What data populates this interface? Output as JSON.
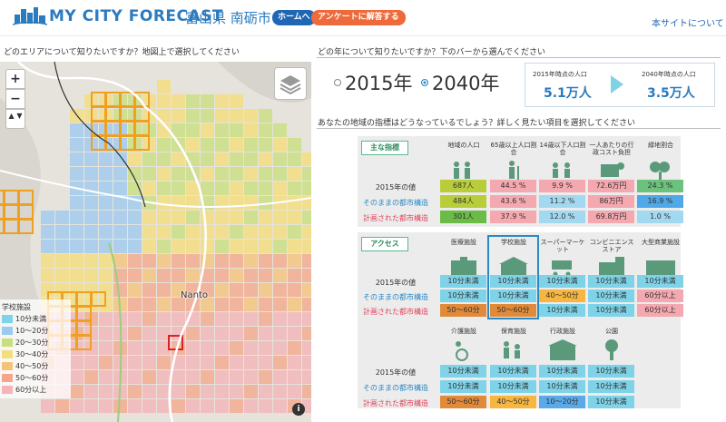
{
  "header": {
    "logo_text": "MY CITY FORECAST",
    "region": "富山県 南砺市",
    "home_button": "ホームへ",
    "survey_button": "アンケートに解答する",
    "about_link": "本サイトについて"
  },
  "left": {
    "area_question": "どのエリアについて知りたいですか？地図上で選択してください",
    "place_label": "Nanto",
    "zoom_in": "+",
    "zoom_out": "−",
    "compass": "▲ ▼",
    "info": "i",
    "legend": {
      "title": "学校施設",
      "items": [
        {
          "label": "10分未満",
          "color": "#7fd3e8"
        },
        {
          "label": "10〜20分",
          "color": "#9cc9f0"
        },
        {
          "label": "20〜30分",
          "color": "#c8df7d"
        },
        {
          "label": "30〜40分",
          "color": "#f4de7a"
        },
        {
          "label": "40〜50分",
          "color": "#f5c27a"
        },
        {
          "label": "50〜60分",
          "color": "#f4a68a"
        },
        {
          "label": "60分以上",
          "color": "#f4b4b8"
        }
      ]
    }
  },
  "right": {
    "year_question": "どの年について知りたいですか？下のバーから選んでください",
    "year_2015": "2015年",
    "year_2040": "2040年",
    "selected_year": "2040年",
    "pop_2015_label": "2015年時点の人口",
    "pop_2015_value": "5.1万人",
    "pop_2040_label": "2040年時点の人口",
    "pop_2040_value": "3.5万人",
    "indicator_question": "あなたの地域の指標はどうなっているでしょう？詳しく見たい項目を選択してください",
    "row_labels": [
      "2015年の値",
      "そのままの都市構造",
      "計画された都市構造"
    ],
    "row_label_colors": [
      "#333333",
      "#2b8ac6",
      "#e0455c"
    ],
    "main": {
      "tag": "主な指標",
      "columns": [
        "地域の人口",
        "65歳以上人口割合",
        "14歳以下人口割合",
        "一人あたりの行政コスト負担",
        "緑地割合"
      ],
      "icons": [
        "people-icon",
        "elderly-icon",
        "children-icon",
        "yen-icon",
        "tree-icon"
      ],
      "rows": [
        [
          "687人",
          "44.5 %",
          "9.9 %",
          "72.6万円",
          "24.3 %"
        ],
        [
          "484人",
          "43.6 %",
          "11.2 %",
          "86万円",
          "16.9 %"
        ],
        [
          "301人",
          "37.9 %",
          "12.0 %",
          "69.8万円",
          "1.0 %"
        ]
      ],
      "colors": [
        [
          "#b9cd3b",
          "#f4a8b0",
          "#f4a8b0",
          "#f4a8b0",
          "#6cc27c"
        ],
        [
          "#b9cd3b",
          "#f4a8b0",
          "#a3d9f0",
          "#f4a8b0",
          "#4fa8e8"
        ],
        [
          "#6bbb47",
          "#f4a8b0",
          "#a3d9f0",
          "#f4a8b0",
          "#a3d9f0"
        ]
      ]
    },
    "access": {
      "tag": "アクセス",
      "columns": [
        "医療施設",
        "学校施設",
        "スーパーマーケット",
        "コンビニエンスストア",
        "大型商業施設"
      ],
      "icons": [
        "hospital-icon",
        "school-icon",
        "cart-icon",
        "convenience-store-icon",
        "mall-icon"
      ],
      "rows": [
        [
          "10分未満",
          "10分未満",
          "10分未満",
          "10分未満",
          "10分未満"
        ],
        [
          "10分未満",
          "10分未満",
          "40〜50分",
          "10分未満",
          "60分以上"
        ],
        [
          "50〜60分",
          "50〜60分",
          "10分未満",
          "10分未満",
          "60分以上"
        ]
      ],
      "colors": [
        [
          "#7fd3e8",
          "#7fd3e8",
          "#7fd3e8",
          "#7fd3e8",
          "#7fd3e8"
        ],
        [
          "#7fd3e8",
          "#7fd3e8",
          "#f6b640",
          "#7fd3e8",
          "#f4a8b0"
        ],
        [
          "#e08a3a",
          "#e08a3a",
          "#7fd3e8",
          "#7fd3e8",
          "#f4a8b0"
        ]
      ],
      "columns2": [
        "介護施設",
        "保育施設",
        "行政施設",
        "公園"
      ],
      "icons2": [
        "care-icon",
        "nursery-icon",
        "government-icon",
        "park-icon"
      ],
      "rows2": [
        [
          "10分未満",
          "10分未満",
          "10分未満",
          "10分未満"
        ],
        [
          "10分未満",
          "10分未満",
          "10分未満",
          "10分未満"
        ],
        [
          "50〜60分",
          "40〜50分",
          "10〜20分",
          "10分未満"
        ]
      ],
      "colors2": [
        [
          "#7fd3e8",
          "#7fd3e8",
          "#7fd3e8",
          "#7fd3e8"
        ],
        [
          "#7fd3e8",
          "#7fd3e8",
          "#7fd3e8",
          "#7fd3e8"
        ],
        [
          "#e08a3a",
          "#f6b640",
          "#5aa9e8",
          "#7fd3e8"
        ]
      ]
    }
  }
}
